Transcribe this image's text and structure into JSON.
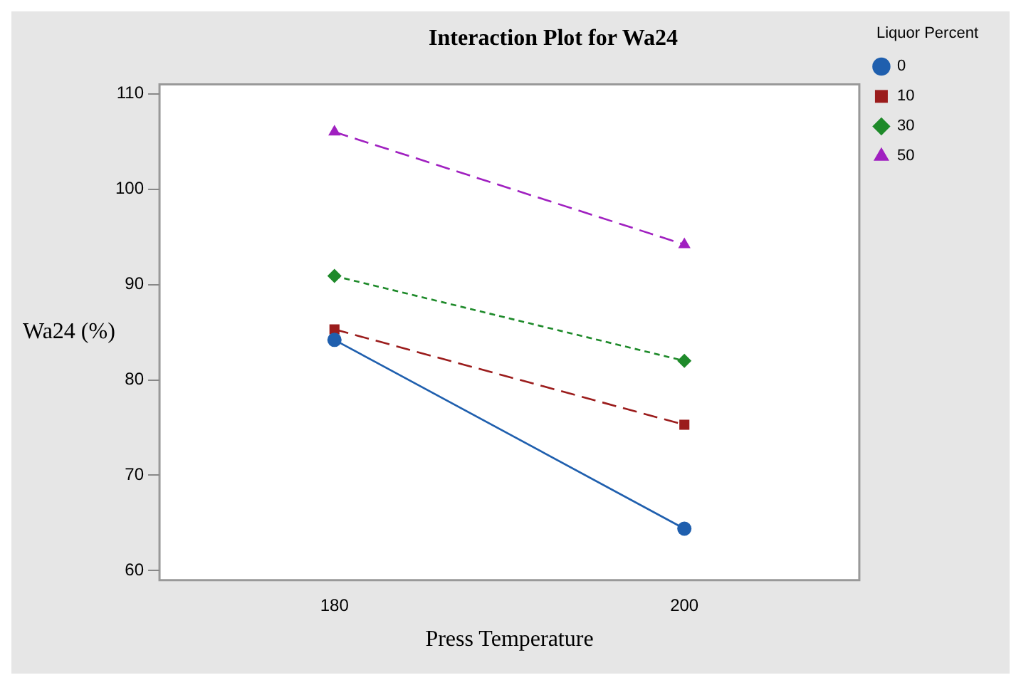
{
  "chart_data": {
    "type": "line",
    "title": "Interaction Plot for Wa24",
    "xlabel": "Press Temperature",
    "ylabel": "Wa24 (%)",
    "legend_title": "Liquor Percent",
    "x": [
      180,
      200
    ],
    "xlim": [
      170,
      210
    ],
    "xticks": [
      180,
      200
    ],
    "ylim": [
      59,
      111
    ],
    "yticks": [
      60,
      70,
      80,
      90,
      100,
      110
    ],
    "grid": false,
    "legend": "right",
    "series": [
      {
        "name": "0",
        "color": "#1f5fae",
        "values": [
          84.2,
          64.4
        ],
        "marker": "circle",
        "line_style": "solid"
      },
      {
        "name": "10",
        "color": "#9b1c1c",
        "values": [
          85.3,
          75.3
        ],
        "marker": "square",
        "line_style": "dashed"
      },
      {
        "name": "30",
        "color": "#1e8a2a",
        "values": [
          90.9,
          82.0
        ],
        "marker": "diamond",
        "line_style": "dotted"
      },
      {
        "name": "50",
        "color": "#a020c0",
        "values": [
          106,
          94.2
        ],
        "marker": "triangle",
        "line_style": "dashed"
      }
    ]
  }
}
